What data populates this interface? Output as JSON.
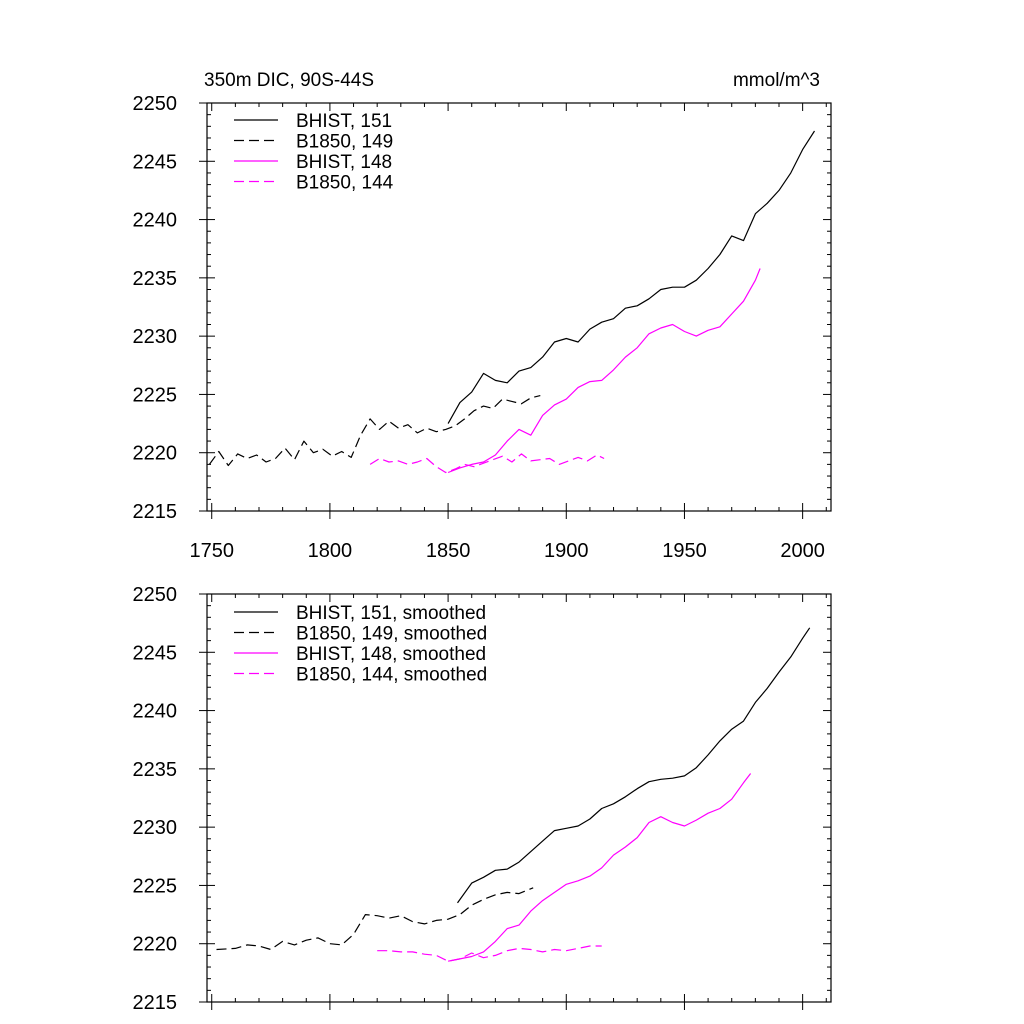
{
  "chart_data": [
    {
      "type": "line",
      "title_left": "350m DIC, 90S-44S",
      "title_right": "mmol/m^3",
      "xlim": [
        1748,
        2012
      ],
      "ylim": [
        2215,
        2250
      ],
      "x_ticks": [
        1750,
        1800,
        1850,
        1900,
        1950,
        2000
      ],
      "x_tick_labels": [
        "1750",
        "1800",
        "1850",
        "1900",
        "1950",
        "2000"
      ],
      "y_ticks": [
        2215,
        2220,
        2225,
        2230,
        2235,
        2240,
        2245,
        2250
      ],
      "y_tick_labels": [
        "2215",
        "2220",
        "2225",
        "2230",
        "2235",
        "2240",
        "2245",
        "2250"
      ],
      "legend_position": "top-left",
      "series": [
        {
          "name": "BHIST, 151",
          "color": "#000000",
          "dash": "solid",
          "x": [
            1850,
            1855,
            1860,
            1865,
            1870,
            1875,
            1880,
            1885,
            1890,
            1895,
            1900,
            1905,
            1910,
            1915,
            1920,
            1925,
            1930,
            1935,
            1940,
            1945,
            1950,
            1955,
            1960,
            1965,
            1970,
            1975,
            1980,
            1985,
            1990,
            1995,
            2000,
            2005
          ],
          "y": [
            2222.5,
            2224.3,
            2225.2,
            2226.8,
            2226.2,
            2226.0,
            2227.0,
            2227.3,
            2228.2,
            2229.5,
            2229.8,
            2229.5,
            2230.6,
            2231.2,
            2231.5,
            2232.4,
            2232.6,
            2233.2,
            2234.0,
            2234.2,
            2234.2,
            2234.8,
            2235.8,
            2237.0,
            2238.6,
            2238.2,
            2240.5,
            2241.4,
            2242.5,
            2244.0,
            2246.0,
            2247.6
          ]
        },
        {
          "name": "B1850, 149",
          "color": "#000000",
          "dash": "dashed",
          "x": [
            1749,
            1753,
            1757,
            1761,
            1765,
            1769,
            1773,
            1777,
            1781,
            1785,
            1789,
            1793,
            1797,
            1801,
            1805,
            1809,
            1813,
            1817,
            1821,
            1825,
            1829,
            1833,
            1837,
            1841,
            1845,
            1849,
            1853,
            1857,
            1861,
            1865,
            1869,
            1873,
            1877,
            1881,
            1885,
            1889
          ],
          "y": [
            2219.0,
            2220.1,
            2218.9,
            2219.9,
            2219.5,
            2219.8,
            2219.2,
            2219.5,
            2220.4,
            2219.4,
            2221.0,
            2220.0,
            2220.3,
            2219.7,
            2220.1,
            2219.6,
            2221.5,
            2222.9,
            2222.0,
            2222.7,
            2222.1,
            2222.4,
            2221.7,
            2222.1,
            2221.8,
            2222.0,
            2222.3,
            2222.9,
            2223.6,
            2224.0,
            2223.8,
            2224.6,
            2224.4,
            2224.2,
            2224.7,
            2224.9
          ]
        },
        {
          "name": "BHIST, 148",
          "color": "#ff00ff",
          "dash": "solid",
          "x": [
            1850,
            1855,
            1860,
            1865,
            1870,
            1875,
            1880,
            1885,
            1890,
            1895,
            1900,
            1905,
            1910,
            1915,
            1920,
            1925,
            1930,
            1935,
            1940,
            1945,
            1950,
            1955,
            1960,
            1965,
            1970,
            1975,
            1980,
            1982
          ],
          "y": [
            2218.3,
            2218.7,
            2219.0,
            2219.2,
            2219.8,
            2221.0,
            2222.0,
            2221.5,
            2223.2,
            2224.1,
            2224.6,
            2225.6,
            2226.1,
            2226.2,
            2227.1,
            2228.2,
            2229.0,
            2230.2,
            2230.7,
            2231.0,
            2230.4,
            2230.0,
            2230.5,
            2230.8,
            2231.9,
            2233.0,
            2234.8,
            2235.8
          ]
        },
        {
          "name": "B1850, 144",
          "color": "#ff00ff",
          "dash": "dashed",
          "x": [
            1817,
            1821,
            1825,
            1829,
            1833,
            1837,
            1841,
            1845,
            1849,
            1853,
            1857,
            1861,
            1865,
            1869,
            1873,
            1877,
            1881,
            1885,
            1889,
            1893,
            1897,
            1901,
            1905,
            1909,
            1913,
            1916
          ],
          "y": [
            2219.0,
            2219.5,
            2219.2,
            2219.3,
            2219.0,
            2219.2,
            2219.5,
            2218.8,
            2218.3,
            2218.6,
            2219.0,
            2218.8,
            2219.1,
            2219.4,
            2219.7,
            2219.2,
            2219.9,
            2219.3,
            2219.4,
            2219.5,
            2219.0,
            2219.3,
            2219.6,
            2219.3,
            2219.8,
            2219.5
          ]
        }
      ]
    },
    {
      "type": "line",
      "xlim": [
        1748,
        2012
      ],
      "ylim": [
        2215,
        2250
      ],
      "x_ticks": [
        1750,
        1800,
        1850,
        1900,
        1950,
        2000
      ],
      "y_ticks": [
        2215,
        2220,
        2225,
        2230,
        2235,
        2240,
        2245,
        2250
      ],
      "y_tick_labels": [
        "2215",
        "2220",
        "2225",
        "2230",
        "2235",
        "2240",
        "2245",
        "2250"
      ],
      "legend_position": "top-left",
      "series": [
        {
          "name": "BHIST, 151, smoothed",
          "color": "#000000",
          "dash": "solid",
          "x": [
            1854,
            1860,
            1865,
            1870,
            1875,
            1880,
            1885,
            1890,
            1895,
            1900,
            1905,
            1910,
            1915,
            1920,
            1925,
            1930,
            1935,
            1940,
            1945,
            1950,
            1955,
            1960,
            1965,
            1970,
            1975,
            1980,
            1985,
            1990,
            1995,
            2000,
            2003
          ],
          "y": [
            2223.5,
            2225.2,
            2225.7,
            2226.3,
            2226.4,
            2227.0,
            2227.9,
            2228.8,
            2229.7,
            2229.9,
            2230.1,
            2230.7,
            2231.6,
            2232.0,
            2232.6,
            2233.3,
            2233.9,
            2234.1,
            2234.2,
            2234.4,
            2235.1,
            2236.2,
            2237.4,
            2238.4,
            2239.1,
            2240.7,
            2241.9,
            2243.3,
            2244.6,
            2246.2,
            2247.1
          ]
        },
        {
          "name": "B1850, 149, smoothed",
          "color": "#000000",
          "dash": "dashed",
          "x": [
            1752,
            1760,
            1765,
            1770,
            1775,
            1780,
            1785,
            1790,
            1795,
            1800,
            1805,
            1810,
            1815,
            1820,
            1825,
            1830,
            1835,
            1840,
            1845,
            1850,
            1855,
            1860,
            1865,
            1870,
            1875,
            1880,
            1886
          ],
          "y": [
            2219.5,
            2219.6,
            2219.9,
            2219.8,
            2219.5,
            2220.2,
            2219.9,
            2220.3,
            2220.5,
            2220.0,
            2219.9,
            2220.8,
            2222.5,
            2222.4,
            2222.2,
            2222.4,
            2221.9,
            2221.7,
            2222.0,
            2222.1,
            2222.5,
            2223.3,
            2223.8,
            2224.2,
            2224.4,
            2224.3,
            2224.8
          ]
        },
        {
          "name": "BHIST, 148, smoothed",
          "color": "#ff00ff",
          "dash": "solid",
          "x": [
            1850,
            1855,
            1860,
            1865,
            1870,
            1875,
            1880,
            1885,
            1890,
            1895,
            1900,
            1905,
            1910,
            1915,
            1920,
            1925,
            1930,
            1935,
            1940,
            1945,
            1950,
            1955,
            1960,
            1965,
            1970,
            1975,
            1978
          ],
          "y": [
            2218.5,
            2218.7,
            2218.9,
            2219.3,
            2220.2,
            2221.3,
            2221.6,
            2222.8,
            2223.7,
            2224.4,
            2225.1,
            2225.4,
            2225.8,
            2226.5,
            2227.6,
            2228.3,
            2229.1,
            2230.4,
            2230.9,
            2230.4,
            2230.1,
            2230.6,
            2231.2,
            2231.6,
            2232.4,
            2233.8,
            2234.6
          ]
        },
        {
          "name": "B1850, 144, smoothed",
          "color": "#ff00ff",
          "dash": "dashed",
          "x": [
            1820,
            1825,
            1830,
            1835,
            1840,
            1845,
            1850,
            1855,
            1860,
            1865,
            1870,
            1875,
            1880,
            1885,
            1890,
            1895,
            1900,
            1905,
            1910,
            1915
          ],
          "y": [
            2219.4,
            2219.4,
            2219.3,
            2219.3,
            2219.1,
            2219.0,
            2218.5,
            2218.7,
            2219.2,
            2218.8,
            2219.0,
            2219.4,
            2219.6,
            2219.5,
            2219.3,
            2219.5,
            2219.4,
            2219.6,
            2219.8,
            2219.8
          ]
        }
      ]
    }
  ]
}
